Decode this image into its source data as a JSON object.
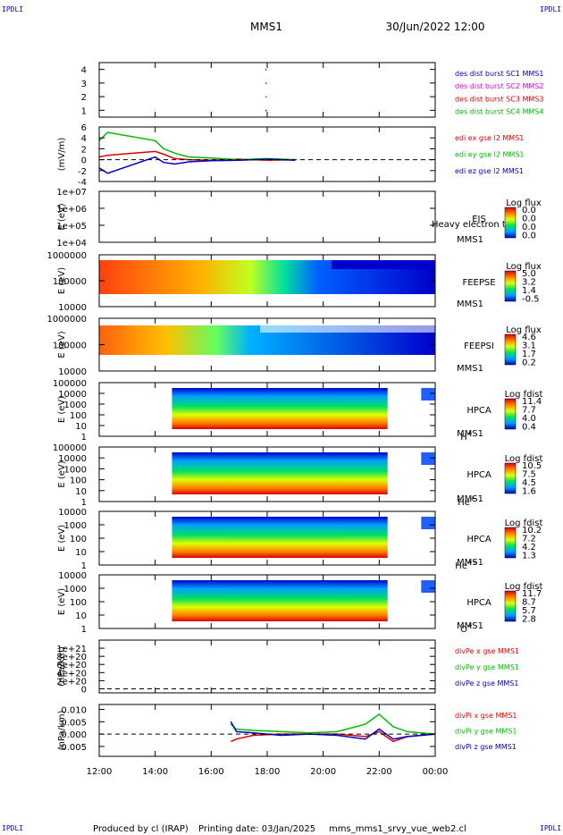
{
  "header": {
    "corner_label": "IPDLI",
    "title": "MMS1",
    "datetime": "30/Jun/2022 12:00"
  },
  "footer": {
    "produced_by": "Produced by cl (IRAP)",
    "printing_date": "Printing date: 03/Jan/2025",
    "filename": "mms_mms1_srvy_vue_web2.cl"
  },
  "time_axis": {
    "tick_labels": [
      "12:00",
      "14:00",
      "16:00",
      "18:00",
      "20:00",
      "22:00",
      "00:00"
    ],
    "range_hours": [
      0,
      12
    ]
  },
  "colors": {
    "blue": "#0000cc",
    "magenta": "#dd00dd",
    "red": "#dd0000",
    "green": "#00bb00",
    "panel_border": "#000000"
  },
  "chart_data": [
    {
      "type": "scatter",
      "panel": "burst",
      "ylim": [
        0.5,
        4.5
      ],
      "yticks": [
        "1",
        "2",
        "3",
        "4"
      ],
      "ylabel": "",
      "dashed_zero": false,
      "legend": [
        {
          "label": "des dist burst SC1 MMS1",
          "color": "blue"
        },
        {
          "label": "des dist burst SC2 MMS2",
          "color": "magenta"
        },
        {
          "label": "des dist burst SC3 MMS3",
          "color": "red"
        },
        {
          "label": "des dist burst SC4 MMS4",
          "color": "green"
        }
      ],
      "series": [
        {
          "name": "des dist burst SC1 MMS1",
          "color": "blue",
          "points": [
            [
              5.95,
              1.0
            ]
          ]
        },
        {
          "name": "des dist burst SC2 MMS2",
          "color": "magenta",
          "points": [
            [
              5.95,
              2.0
            ]
          ]
        },
        {
          "name": "des dist burst SC3 MMS3",
          "color": "red",
          "points": [
            [
              5.95,
              3.0
            ],
            [
              5.95,
              4.0
            ]
          ]
        },
        {
          "name": "des dist burst SC4 MMS4",
          "color": "green",
          "points": []
        }
      ]
    },
    {
      "type": "line",
      "panel": "edi",
      "ylim": [
        -4,
        6
      ],
      "yticks": [
        "-4",
        "-2",
        "0",
        "2",
        "4",
        "6"
      ],
      "ylabel": "(mV/m)",
      "dashed_zero": true,
      "legend": [
        {
          "label": "edi ex gse l2 MMS1",
          "color": "red"
        },
        {
          "label": "edi ey gse l2 MMS1",
          "color": "green"
        },
        {
          "label": "edi ez gse l2 MMS1",
          "color": "blue"
        }
      ],
      "series": [
        {
          "name": "edi ex gse l2 MMS1",
          "color": "red",
          "x": [
            0.0,
            0.3,
            2.0,
            2.3,
            2.7,
            3.2,
            4.0,
            5.0,
            6.0,
            7.0
          ],
          "y": [
            0.5,
            0.8,
            1.5,
            1.0,
            0.2,
            0.0,
            -0.1,
            0.1,
            -0.1,
            0.0
          ]
        },
        {
          "name": "edi ey gse l2 MMS1",
          "color": "green",
          "x": [
            0.0,
            0.3,
            2.0,
            2.3,
            2.7,
            3.2,
            4.0,
            5.0,
            6.0,
            7.0
          ],
          "y": [
            3.5,
            5.0,
            3.5,
            2.0,
            1.2,
            0.5,
            0.3,
            0.0,
            0.2,
            0.0
          ]
        },
        {
          "name": "edi ez gse l2 MMS1",
          "color": "blue",
          "x": [
            0.0,
            0.3,
            2.0,
            2.3,
            2.7,
            3.2,
            4.0,
            5.0,
            6.0,
            7.0
          ],
          "y": [
            -1.5,
            -2.5,
            0.5,
            -0.5,
            -0.8,
            -0.4,
            -0.2,
            -0.1,
            0.1,
            -0.1
          ]
        }
      ]
    },
    {
      "type": "heatmap",
      "panel": "eis",
      "ylabel": "E (eV)",
      "yticks": [
        "1e+04",
        "1e+05",
        "1e+06",
        "1e+07"
      ],
      "inst": "EIS",
      "sc": "MMS1",
      "species": "",
      "overlay_note": "Heavy electron to",
      "cbar_title": "Log flux",
      "cbar_ticks": [
        "0.0",
        "0.0",
        "0.0",
        "0.0"
      ],
      "filled": false
    },
    {
      "type": "heatmap",
      "panel": "feepse",
      "ylabel": "E (eV)",
      "yticks": [
        "10000",
        "100000",
        "1000000"
      ],
      "inst": "FEEPSE",
      "sc": "MMS1",
      "species": "",
      "cbar_title": "Log flux",
      "cbar_ticks": [
        "5.0",
        "3.2",
        "1.4",
        "-0.5"
      ],
      "filled": true
    },
    {
      "type": "heatmap",
      "panel": "feepsi",
      "ylabel": "E (eV)",
      "yticks": [
        "10000",
        "100000",
        "1000000"
      ],
      "inst": "FEEPSI",
      "sc": "MMS1",
      "species": "",
      "cbar_title": "Log flux",
      "cbar_ticks": [
        "4.6",
        "3.1",
        "1.7",
        "0.2"
      ],
      "filled": true
    },
    {
      "type": "heatmap",
      "panel": "hpca_h",
      "ylabel": "E (eV)",
      "yticks": [
        "1",
        "10",
        "100",
        "1000",
        "10000",
        "100000"
      ],
      "inst": "HPCA",
      "sc": "MMS1",
      "species": "H",
      "species_sup": "+",
      "cbar_title": "Log fdist",
      "cbar_ticks": [
        "11.4",
        "7.7",
        "4.0",
        "0.4"
      ],
      "filled": true
    },
    {
      "type": "heatmap",
      "panel": "hpca_he",
      "ylabel": "E (eV)",
      "yticks": [
        "1",
        "10",
        "100",
        "1000",
        "10000",
        "100000"
      ],
      "inst": "HPCA",
      "sc": "MMS1",
      "species": "He",
      "species_sup": "+",
      "cbar_title": "Log fdist",
      "cbar_ticks": [
        "10.5",
        "7.5",
        "4.5",
        "1.6"
      ],
      "filled": true
    },
    {
      "type": "heatmap",
      "panel": "hpca_hepp",
      "ylabel": "E (eV)",
      "yticks": [
        "1",
        "10",
        "100",
        "1000",
        "10000"
      ],
      "inst": "HPCA",
      "sc": "MMS1",
      "species": "He",
      "species_sup": "++",
      "cbar_title": "Log fdist",
      "cbar_ticks": [
        "10.2",
        "7.2",
        "4.2",
        "1.3"
      ],
      "filled": true
    },
    {
      "type": "heatmap",
      "panel": "hpca_o",
      "ylabel": "E (eV)",
      "yticks": [
        "1",
        "10",
        "100",
        "1000",
        "10000"
      ],
      "inst": "HPCA",
      "sc": "MMS1",
      "species": "O",
      "species_sup": "+",
      "cbar_title": "Log fdist",
      "cbar_ticks": [
        "11.7",
        "8.7",
        "5.7",
        "2.8"
      ],
      "filled": true
    },
    {
      "type": "line",
      "panel": "divpe",
      "ylim": [
        -1e+20,
        1.2e+21
      ],
      "yticks": [
        "0",
        "2e+20",
        "4e+20",
        "6e+20",
        "8e+20",
        "1e+21"
      ],
      "ytick_values": [
        0,
        2e+20,
        4e+20,
        6e+20,
        8e+20,
        1e+21
      ],
      "ylabel": "(nPa/km)",
      "dashed_zero": true,
      "legend": [
        {
          "label": "divPe x gse MMS1",
          "color": "red"
        },
        {
          "label": "divPe y gse MMS1",
          "color": "green"
        },
        {
          "label": "divPe z gse MMS1",
          "color": "blue"
        }
      ],
      "series": []
    },
    {
      "type": "line",
      "panel": "divpi",
      "ylim": [
        -0.009,
        0.012
      ],
      "yticks": [
        "-0.005",
        "0.000",
        "0.005",
        "0.010"
      ],
      "ytick_values": [
        -0.005,
        0.0,
        0.005,
        0.01
      ],
      "ylabel": "(nPa/km)",
      "dashed_zero": true,
      "legend": [
        {
          "label": "divPi x gse MMS1",
          "color": "red"
        },
        {
          "label": "divPi y gse MMS1",
          "color": "green"
        },
        {
          "label": "divPi z gse MMS1",
          "color": "blue"
        }
      ],
      "series": [
        {
          "name": "divPi x gse MMS1",
          "color": "red",
          "x": [
            4.7,
            4.9,
            5.5,
            6.5,
            7.5,
            8.5,
            9.5,
            10.0,
            10.5,
            11.0,
            12.0
          ],
          "y": [
            -0.003,
            -0.002,
            -0.0005,
            0.0,
            0.0,
            0.0,
            -0.001,
            0.001,
            -0.003,
            -0.001,
            0.0
          ]
        },
        {
          "name": "divPi y gse MMS1",
          "color": "green",
          "x": [
            4.7,
            4.9,
            5.5,
            6.5,
            7.5,
            8.5,
            9.5,
            10.0,
            10.5,
            11.0,
            12.0
          ],
          "y": [
            0.004,
            0.002,
            0.0015,
            0.001,
            0.0005,
            0.001,
            0.004,
            0.008,
            0.003,
            0.001,
            0.0
          ]
        },
        {
          "name": "divPi z gse MMS1",
          "color": "blue",
          "x": [
            4.7,
            4.9,
            5.5,
            6.5,
            7.5,
            8.5,
            9.5,
            10.0,
            10.5,
            11.0,
            12.0
          ],
          "y": [
            0.005,
            0.001,
            0.0005,
            -0.0005,
            0.0,
            -0.0005,
            -0.002,
            0.002,
            -0.002,
            -0.001,
            0.0
          ]
        }
      ]
    }
  ]
}
